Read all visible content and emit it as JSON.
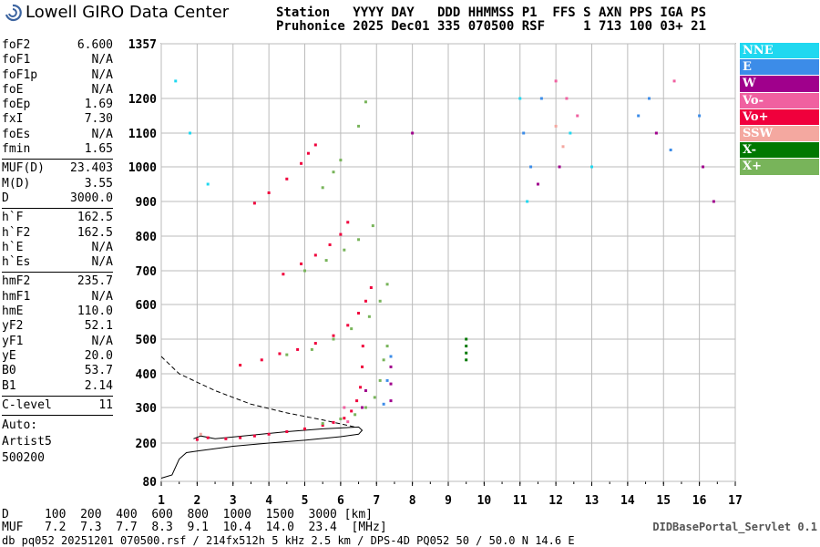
{
  "logo": {
    "text": "Lowell GIRO Data Center"
  },
  "header": {
    "line1": "Station   YYYY DAY   DDD HHMMSS P1  FFS S AXN PPS IGA PS",
    "line2": "Pruhonice 2025 Dec01 335 070500 RSF     1 713 100 03+ 21"
  },
  "params": {
    "group1": [
      {
        "k": "foF2",
        "v": "6.600"
      },
      {
        "k": "foF1",
        "v": "N/A"
      },
      {
        "k": "foF1p",
        "v": "N/A"
      },
      {
        "k": "foE",
        "v": "N/A"
      },
      {
        "k": "foEp",
        "v": "1.69"
      },
      {
        "k": "fxI",
        "v": "7.30"
      },
      {
        "k": "foEs",
        "v": "N/A"
      },
      {
        "k": "fmin",
        "v": "1.65"
      }
    ],
    "group2": [
      {
        "k": "MUF(D)",
        "v": "23.403"
      },
      {
        "k": "M(D)",
        "v": "3.55"
      },
      {
        "k": "D",
        "v": "3000.0"
      }
    ],
    "group3": [
      {
        "k": "h`F",
        "v": "162.5"
      },
      {
        "k": "h`F2",
        "v": "162.5"
      },
      {
        "k": "h`E",
        "v": "N/A"
      },
      {
        "k": "h`Es",
        "v": "N/A"
      }
    ],
    "group4": [
      {
        "k": "hmF2",
        "v": "235.7"
      },
      {
        "k": "hmF1",
        "v": "N/A"
      },
      {
        "k": "hmE",
        "v": "110.0"
      },
      {
        "k": "yF2",
        "v": "52.1"
      },
      {
        "k": "yF1",
        "v": "N/A"
      },
      {
        "k": "yE",
        "v": "20.0"
      },
      {
        "k": "B0",
        "v": "53.7"
      },
      {
        "k": "B1",
        "v": "2.14"
      }
    ],
    "group5": [
      {
        "k": "C-level",
        "v": "11"
      }
    ],
    "auto": [
      "Auto:",
      "Artist5",
      "500200"
    ]
  },
  "legend": [
    {
      "label": "NNE",
      "color": "#20d8f0"
    },
    {
      "label": "E",
      "color": "#3c8ce8"
    },
    {
      "label": "W",
      "color": "#a0008c"
    },
    {
      "label": "Vo-",
      "color": "#f060a0"
    },
    {
      "label": "Vo+",
      "color": "#f0003c"
    },
    {
      "label": "SSW",
      "color": "#f4a8a0"
    },
    {
      "label": "X-",
      "color": "#007800"
    },
    {
      "label": "X+",
      "color": "#78b45a"
    }
  ],
  "footer": {
    "line1": "D     100  200  400  600  800  1000  1500  3000 [km]",
    "line2": "MUF   7.2  7.3  7.7  8.3  9.1  10.4  14.0  23.4  [MHz]",
    "line3": "db pq052 20251201 070500.rsf / 214fx512h 5 kHz 2.5 km / DPS-4D PQ052 50 / 50.0 N 14.6 E",
    "servlet": "DIDBasePortal_Servlet 0.1"
  },
  "chart_data": {
    "type": "scatter",
    "x_ticks": [
      1,
      2,
      3,
      4,
      5,
      6,
      7,
      8,
      9,
      10,
      11,
      12,
      13,
      14,
      15,
      16,
      17
    ],
    "y_ticks": [
      80,
      200,
      300,
      400,
      500,
      600,
      700,
      800,
      900,
      1000,
      1100,
      1200,
      1357
    ],
    "xlim": [
      1,
      17
    ],
    "ylim": [
      80,
      1357
    ],
    "grid": true,
    "series": [
      {
        "name": "Vo+",
        "color": "#f0003c",
        "points": [
          [
            2.0,
            210
          ],
          [
            2.3,
            215
          ],
          [
            2.8,
            212
          ],
          [
            3.2,
            215
          ],
          [
            3.6,
            220
          ],
          [
            4.0,
            225
          ],
          [
            4.5,
            232
          ],
          [
            5.0,
            240
          ],
          [
            5.5,
            250
          ],
          [
            5.8,
            258
          ],
          [
            6.1,
            270
          ],
          [
            6.3,
            290
          ],
          [
            6.45,
            320
          ],
          [
            6.55,
            360
          ],
          [
            6.6,
            420
          ],
          [
            6.62,
            480
          ],
          [
            3.2,
            425
          ],
          [
            3.8,
            440
          ],
          [
            4.3,
            458
          ],
          [
            4.8,
            470
          ],
          [
            5.3,
            488
          ],
          [
            5.8,
            510
          ],
          [
            6.2,
            540
          ],
          [
            6.5,
            575
          ],
          [
            6.7,
            610
          ],
          [
            6.85,
            650
          ],
          [
            4.4,
            690
          ],
          [
            4.9,
            720
          ],
          [
            5.3,
            745
          ],
          [
            5.7,
            775
          ],
          [
            6.0,
            805
          ],
          [
            6.2,
            840
          ],
          [
            3.6,
            895
          ],
          [
            4.0,
            925
          ],
          [
            4.5,
            965
          ],
          [
            4.9,
            1010
          ],
          [
            5.1,
            1040
          ],
          [
            5.3,
            1065
          ]
        ]
      },
      {
        "name": "X+",
        "color": "#78b45a",
        "points": [
          [
            5.5,
            255
          ],
          [
            6.0,
            268
          ],
          [
            6.4,
            280
          ],
          [
            6.7,
            300
          ],
          [
            6.95,
            330
          ],
          [
            7.1,
            380
          ],
          [
            7.2,
            440
          ],
          [
            7.3,
            480
          ],
          [
            4.5,
            455
          ],
          [
            5.2,
            470
          ],
          [
            5.8,
            500
          ],
          [
            6.3,
            530
          ],
          [
            6.8,
            565
          ],
          [
            7.1,
            610
          ],
          [
            7.3,
            660
          ],
          [
            5.0,
            700
          ],
          [
            5.6,
            730
          ],
          [
            6.1,
            760
          ],
          [
            6.5,
            790
          ],
          [
            6.9,
            830
          ],
          [
            5.5,
            940
          ],
          [
            5.8,
            985
          ],
          [
            6.0,
            1020
          ],
          [
            6.5,
            1120
          ],
          [
            6.7,
            1190
          ]
        ]
      },
      {
        "name": "X-",
        "color": "#007800",
        "points": [
          [
            9.5,
            440
          ],
          [
            9.5,
            460
          ],
          [
            9.5,
            480
          ],
          [
            9.5,
            500
          ]
        ]
      },
      {
        "name": "W",
        "color": "#a0008c",
        "points": [
          [
            6.6,
            300
          ],
          [
            6.7,
            350
          ],
          [
            7.4,
            320
          ],
          [
            7.4,
            370
          ],
          [
            7.4,
            420
          ],
          [
            11.5,
            950
          ],
          [
            12.1,
            1000
          ],
          [
            14.8,
            1100
          ],
          [
            16.1,
            1000
          ],
          [
            16.4,
            900
          ],
          [
            8.0,
            1100
          ]
        ]
      },
      {
        "name": "E",
        "color": "#3c8ce8",
        "points": [
          [
            7.2,
            310
          ],
          [
            7.3,
            380
          ],
          [
            7.4,
            450
          ],
          [
            11.1,
            1100
          ],
          [
            11.3,
            1000
          ],
          [
            11.6,
            1200
          ],
          [
            14.3,
            1150
          ],
          [
            14.6,
            1200
          ],
          [
            15.2,
            1050
          ],
          [
            16.0,
            1150
          ]
        ]
      },
      {
        "name": "NNE",
        "color": "#20d8f0",
        "points": [
          [
            1.4,
            1250
          ],
          [
            1.8,
            1100
          ],
          [
            2.3,
            950
          ],
          [
            11.2,
            900
          ],
          [
            11.0,
            1200
          ],
          [
            12.4,
            1100
          ],
          [
            13.0,
            1000
          ]
        ]
      },
      {
        "name": "Vo-",
        "color": "#f060a0",
        "points": [
          [
            6.1,
            300
          ],
          [
            6.2,
            260
          ],
          [
            12.0,
            1250
          ],
          [
            12.3,
            1200
          ],
          [
            12.6,
            1150
          ],
          [
            15.3,
            1250
          ]
        ]
      },
      {
        "name": "SSW",
        "color": "#f4a8a0",
        "points": [
          [
            2.1,
            225
          ],
          [
            12.0,
            1120
          ],
          [
            12.2,
            1060
          ]
        ]
      }
    ],
    "profile_solid": [
      [
        1.0,
        90
      ],
      [
        1.3,
        100
      ],
      [
        1.5,
        150
      ],
      [
        1.7,
        170
      ],
      [
        2.0,
        175
      ],
      [
        3.0,
        190
      ],
      [
        4.0,
        200
      ],
      [
        5.0,
        208
      ],
      [
        6.0,
        218
      ],
      [
        6.5,
        225
      ],
      [
        6.6,
        236
      ],
      [
        6.5,
        245
      ],
      [
        5.5,
        240
      ],
      [
        4.5,
        232
      ],
      [
        3.5,
        222
      ],
      [
        2.5,
        212
      ],
      [
        2.1,
        220
      ],
      [
        1.9,
        212
      ]
    ],
    "profile_dashed": [
      [
        1.0,
        450
      ],
      [
        1.5,
        400
      ],
      [
        2.5,
        350
      ],
      [
        3.5,
        310
      ],
      [
        4.5,
        285
      ],
      [
        5.5,
        265
      ],
      [
        6.4,
        245
      ]
    ]
  }
}
